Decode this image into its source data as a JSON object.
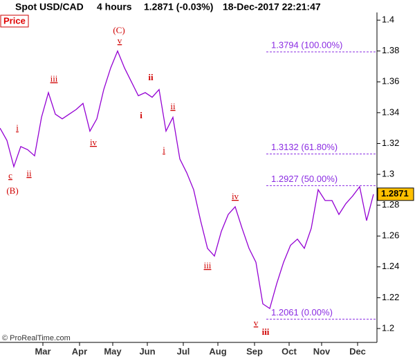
{
  "chart_data": {
    "type": "line",
    "header": {
      "instrument": "Spot USD/CAD",
      "period": "4 hours",
      "quote": "1.2871 (-0.03%)",
      "timestamp": "18-Dec-2017 22:21:47"
    },
    "panel_label": "Price",
    "footer": "© ProRealTime.com",
    "series": [
      {
        "name": "Spot USD/CAD",
        "color": "#9400d3",
        "values": [
          1.33,
          1.322,
          1.305,
          1.318,
          1.316,
          1.312,
          1.337,
          1.353,
          1.339,
          1.336,
          1.339,
          1.342,
          1.346,
          1.328,
          1.336,
          1.355,
          1.369,
          1.38,
          1.369,
          1.36,
          1.351,
          1.353,
          1.35,
          1.355,
          1.328,
          1.337,
          1.31,
          1.301,
          1.29,
          1.27,
          1.252,
          1.247,
          1.263,
          1.274,
          1.279,
          1.265,
          1.252,
          1.243,
          1.216,
          1.213,
          1.229,
          1.243,
          1.254,
          1.258,
          1.252,
          1.265,
          1.29,
          1.283,
          1.283,
          1.274,
          1.281,
          1.286,
          1.292,
          1.27,
          1.2871
        ]
      }
    ],
    "last_price": 1.2871,
    "xlim": [
      0,
      54.5
    ],
    "xticks": [
      {
        "value": 6.2,
        "label": "Mar"
      },
      {
        "value": 11.5,
        "label": "Apr"
      },
      {
        "value": 16.3,
        "label": "May"
      },
      {
        "value": 21.3,
        "label": "Jun"
      },
      {
        "value": 26.5,
        "label": "Jul"
      },
      {
        "value": 31.5,
        "label": "Aug"
      },
      {
        "value": 36.8,
        "label": "Sep"
      },
      {
        "value": 41.8,
        "label": "Oct"
      },
      {
        "value": 46.5,
        "label": "Nov"
      },
      {
        "value": 51.7,
        "label": "Dec"
      }
    ],
    "ylim": [
      1.191,
      1.405
    ],
    "yticks": [
      1.2,
      1.22,
      1.24,
      1.26,
      1.28,
      1.3,
      1.32,
      1.34,
      1.36,
      1.38,
      1.4
    ],
    "fib_levels": [
      {
        "value": 1.3794,
        "label": "1.3794 (100.00%)"
      },
      {
        "value": 1.3132,
        "label": "1.3132 (61.80%)"
      },
      {
        "value": 1.2927,
        "label": "1.2927 (50.00%)"
      },
      {
        "value": 1.2061,
        "label": "1.2061 (0.00%)"
      }
    ],
    "wave_labels": [
      "(B)",
      "c",
      "i",
      "ii",
      "iii",
      "iv",
      "(C)",
      "v",
      "ii",
      "i",
      "ii",
      "i",
      "iv",
      "iii",
      "v",
      "iii"
    ]
  }
}
